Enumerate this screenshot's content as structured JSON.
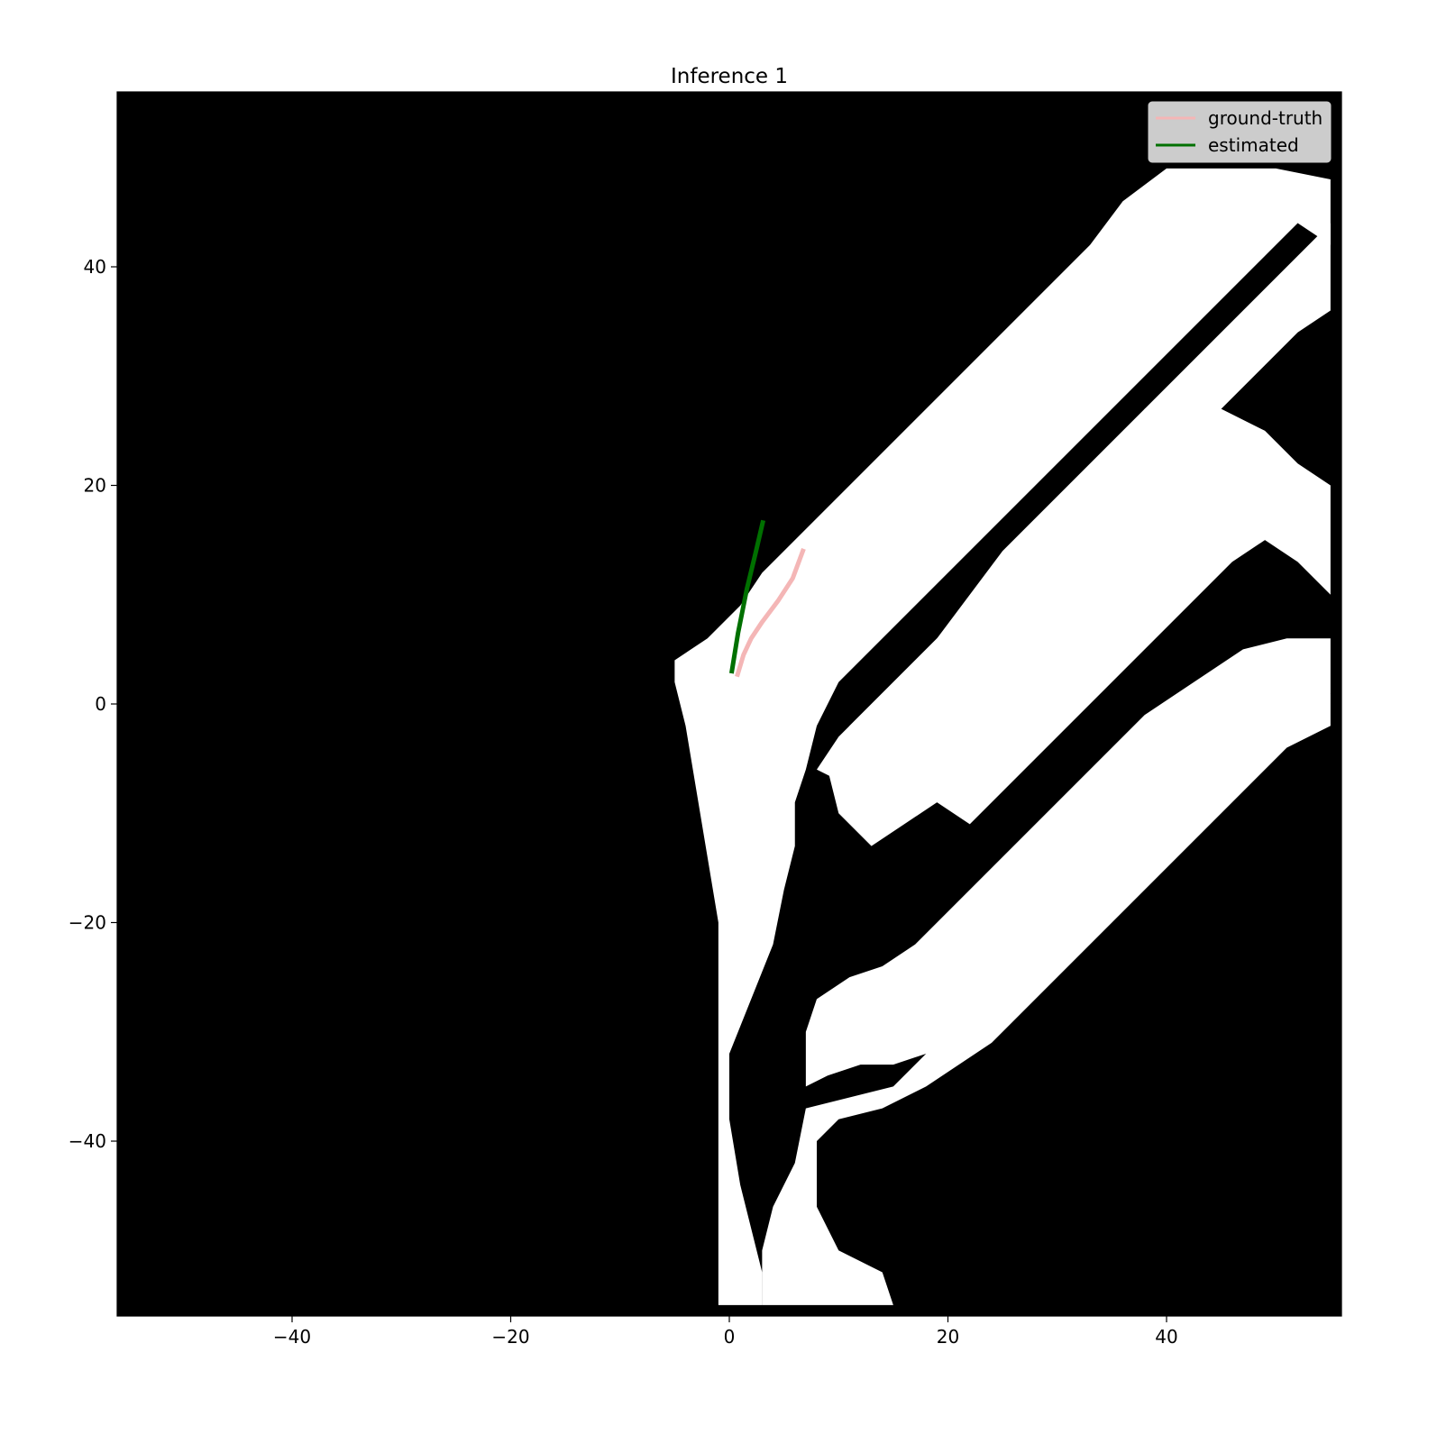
{
  "chart_data": {
    "type": "line",
    "title": "Inference 1",
    "xlabel": "",
    "ylabel": "",
    "xlim": [
      -56,
      56
    ],
    "ylim": [
      -56,
      56
    ],
    "xticks": [
      -40,
      -20,
      0,
      20,
      40
    ],
    "yticks": [
      40,
      20,
      0,
      -20,
      -40
    ],
    "xtick_labels": [
      "−40",
      "−20",
      "0",
      "20",
      "40"
    ],
    "ytick_labels": [
      "40",
      "20",
      "0",
      "−20",
      "−40"
    ],
    "grid": false,
    "background": "occupancy grid map (black = occupied/unknown, white = free)",
    "legend_position": "top-right",
    "series": [
      {
        "name": "ground-truth",
        "color": "#f4b6b6",
        "x": [
          0.7,
          1.3,
          2.0,
          3.0,
          4.5,
          5.8,
          6.8
        ],
        "y": [
          2.5,
          4.5,
          6.0,
          7.5,
          9.5,
          11.5,
          14.2
        ]
      },
      {
        "name": "estimated",
        "color": "#007000",
        "x": [
          0.2,
          0.8,
          1.6,
          2.4,
          3.1
        ],
        "y": [
          2.8,
          6.5,
          10.5,
          13.8,
          16.8
        ]
      }
    ],
    "free_space_polygons": [
      [
        [
          -5,
          4
        ],
        [
          -2,
          6
        ],
        [
          1,
          9
        ],
        [
          3,
          12
        ],
        [
          6,
          15
        ],
        [
          9,
          18
        ],
        [
          12,
          21
        ],
        [
          15,
          24
        ],
        [
          18,
          27
        ],
        [
          21,
          30
        ],
        [
          24,
          33
        ],
        [
          27,
          36
        ],
        [
          30,
          39
        ],
        [
          33,
          42
        ],
        [
          36,
          46
        ],
        [
          40,
          49
        ],
        [
          50,
          49
        ],
        [
          55,
          48
        ],
        [
          55,
          42
        ],
        [
          52,
          44
        ],
        [
          49,
          41
        ],
        [
          46,
          38
        ],
        [
          43,
          35
        ],
        [
          40,
          32
        ],
        [
          37,
          29
        ],
        [
          34,
          26
        ],
        [
          31,
          23
        ],
        [
          28,
          20
        ],
        [
          25,
          17
        ],
        [
          22,
          14
        ],
        [
          19,
          11
        ],
        [
          16,
          8
        ],
        [
          13,
          5
        ],
        [
          10,
          2
        ],
        [
          8,
          -2
        ],
        [
          7,
          -6
        ],
        [
          6,
          -9
        ],
        [
          6,
          -13
        ],
        [
          5,
          -17
        ],
        [
          4,
          -22
        ],
        [
          2,
          -27
        ],
        [
          0,
          -32
        ],
        [
          0,
          -38
        ],
        [
          1,
          -44
        ],
        [
          2,
          -48
        ],
        [
          3,
          -52
        ],
        [
          3,
          -55
        ],
        [
          -1,
          -55
        ],
        [
          -1,
          -50
        ],
        [
          -1,
          -44
        ],
        [
          -1,
          -38
        ],
        [
          -1,
          -32
        ],
        [
          -1,
          -26
        ],
        [
          -1,
          -20
        ],
        [
          -2,
          -14
        ],
        [
          -3,
          -8
        ],
        [
          -4,
          -2
        ],
        [
          -5,
          2
        ]
      ],
      [
        [
          8,
          -6
        ],
        [
          10,
          -3
        ],
        [
          13,
          0
        ],
        [
          16,
          3
        ],
        [
          19,
          6
        ],
        [
          22,
          10
        ],
        [
          25,
          14
        ],
        [
          28,
          17
        ],
        [
          31,
          20
        ],
        [
          34,
          23
        ],
        [
          37,
          26
        ],
        [
          40,
          29
        ],
        [
          43,
          32
        ],
        [
          46,
          35
        ],
        [
          49,
          38
        ],
        [
          52,
          41
        ],
        [
          55,
          44
        ],
        [
          55,
          36
        ],
        [
          52,
          34
        ],
        [
          49,
          31
        ],
        [
          46,
          28
        ],
        [
          43,
          25
        ],
        [
          40,
          22
        ],
        [
          37,
          19
        ],
        [
          34,
          16
        ],
        [
          31,
          13
        ],
        [
          28,
          10
        ],
        [
          25,
          7
        ],
        [
          22,
          4
        ],
        [
          19,
          1
        ],
        [
          16,
          -2
        ],
        [
          13,
          -5
        ],
        [
          10,
          -7
        ]
      ],
      [
        [
          13,
          -13
        ],
        [
          16,
          -11
        ],
        [
          19,
          -9
        ],
        [
          22,
          -11
        ],
        [
          25,
          -8
        ],
        [
          28,
          -5
        ],
        [
          31,
          -2
        ],
        [
          34,
          1
        ],
        [
          37,
          4
        ],
        [
          40,
          7
        ],
        [
          43,
          10
        ],
        [
          46,
          13
        ],
        [
          49,
          15
        ],
        [
          52,
          13
        ],
        [
          55,
          10
        ],
        [
          55,
          20
        ],
        [
          52,
          22
        ],
        [
          49,
          25
        ],
        [
          45,
          27
        ],
        [
          41,
          29
        ],
        [
          38,
          27
        ],
        [
          35,
          22
        ],
        [
          32,
          19
        ],
        [
          29,
          16
        ],
        [
          26,
          13
        ],
        [
          23,
          10
        ],
        [
          20,
          7
        ],
        [
          17,
          4
        ],
        [
          14,
          1
        ],
        [
          11,
          -2
        ],
        [
          9,
          -6
        ],
        [
          10,
          -10
        ]
      ],
      [
        [
          7,
          -35
        ],
        [
          9,
          -34
        ],
        [
          12,
          -33
        ],
        [
          15,
          -33
        ],
        [
          18,
          -32
        ],
        [
          21,
          -31
        ],
        [
          24,
          -29
        ],
        [
          27,
          -26
        ],
        [
          30,
          -23
        ],
        [
          33,
          -20
        ],
        [
          36,
          -17
        ],
        [
          39,
          -14
        ],
        [
          42,
          -11
        ],
        [
          45,
          -8
        ],
        [
          48,
          -5
        ],
        [
          51,
          -2
        ],
        [
          55,
          1
        ],
        [
          55,
          6
        ],
        [
          51,
          6
        ],
        [
          47,
          5
        ],
        [
          44,
          3
        ],
        [
          41,
          1
        ],
        [
          38,
          -1
        ],
        [
          35,
          -4
        ],
        [
          32,
          -7
        ],
        [
          29,
          -10
        ],
        [
          26,
          -13
        ],
        [
          23,
          -16
        ],
        [
          20,
          -19
        ],
        [
          17,
          -22
        ],
        [
          14,
          -24
        ],
        [
          11,
          -25
        ],
        [
          8,
          -27
        ],
        [
          7,
          -30
        ]
      ],
      [
        [
          7,
          -37
        ],
        [
          11,
          -36
        ],
        [
          15,
          -35
        ],
        [
          18,
          -32
        ],
        [
          21,
          -29
        ],
        [
          24,
          -26
        ],
        [
          27,
          -23
        ],
        [
          30,
          -20
        ],
        [
          33,
          -17
        ],
        [
          36,
          -14
        ],
        [
          39,
          -11
        ],
        [
          42,
          -8
        ],
        [
          45,
          -5
        ],
        [
          48,
          -3
        ],
        [
          51,
          -1
        ],
        [
          55,
          1
        ],
        [
          55,
          -2
        ],
        [
          51,
          -4
        ],
        [
          48,
          -7
        ],
        [
          45,
          -10
        ],
        [
          42,
          -13
        ],
        [
          39,
          -16
        ],
        [
          36,
          -19
        ],
        [
          33,
          -22
        ],
        [
          30,
          -25
        ],
        [
          27,
          -28
        ],
        [
          24,
          -31
        ],
        [
          21,
          -33
        ],
        [
          18,
          -35
        ],
        [
          14,
          -37
        ],
        [
          10,
          -38
        ],
        [
          8,
          -40
        ],
        [
          8,
          -46
        ],
        [
          10,
          -50
        ],
        [
          14,
          -52
        ],
        [
          15,
          -55
        ],
        [
          3,
          -55
        ],
        [
          3,
          -50
        ],
        [
          4,
          -46
        ],
        [
          6,
          -42
        ]
      ]
    ]
  },
  "legend": {
    "items": [
      {
        "label": "ground-truth",
        "color": "#f4b6b6"
      },
      {
        "label": "estimated",
        "color": "#007000"
      }
    ]
  }
}
